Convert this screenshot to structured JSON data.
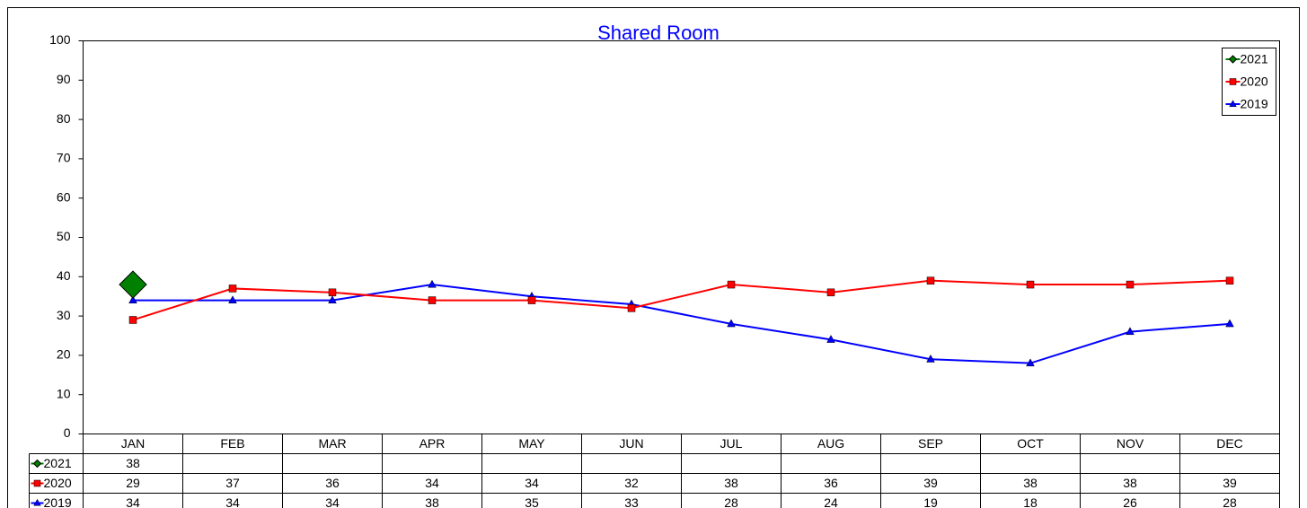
{
  "chart_data": {
    "type": "line",
    "title": "Shared Room",
    "categories": [
      "JAN",
      "FEB",
      "MAR",
      "APR",
      "MAY",
      "JUN",
      "JUL",
      "AUG",
      "SEP",
      "OCT",
      "NOV",
      "DEC"
    ],
    "series": [
      {
        "name": "2021",
        "color": "#008000",
        "marker": "diamond",
        "values": [
          38,
          null,
          null,
          null,
          null,
          null,
          null,
          null,
          null,
          null,
          null,
          null
        ]
      },
      {
        "name": "2020",
        "color": "#ff0000",
        "marker": "square",
        "values": [
          29,
          37,
          36,
          34,
          34,
          32,
          38,
          36,
          39,
          38,
          38,
          39
        ]
      },
      {
        "name": "2019",
        "color": "#0000ff",
        "marker": "triangle",
        "values": [
          34,
          34,
          34,
          38,
          35,
          33,
          28,
          24,
          19,
          18,
          26,
          28
        ]
      }
    ],
    "ylim": [
      0,
      100
    ],
    "yticks": [
      0,
      10,
      20,
      30,
      40,
      50,
      60,
      70,
      80,
      90,
      100
    ],
    "legend": "top-right",
    "data_table": true
  }
}
